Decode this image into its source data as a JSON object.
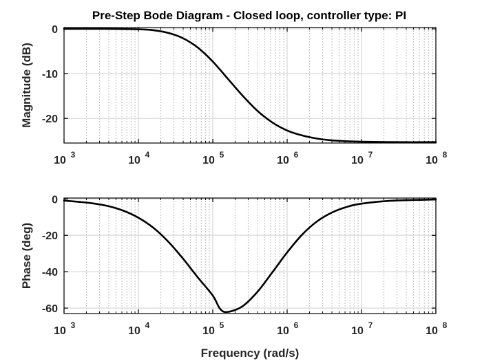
{
  "chart_data": [
    {
      "type": "line",
      "title": "Pre-Step Bode Diagram - Closed loop, controller type: PI",
      "xlabel": "",
      "ylabel": "Magnitude (dB)",
      "xscale": "log",
      "xlim": [
        1000,
        100000000
      ],
      "ylim": [
        -25.5,
        0.3
      ],
      "grid": true,
      "xticks": [
        1000,
        10000,
        100000,
        1000000,
        10000000,
        100000000
      ],
      "yticks": [
        0,
        -10,
        -20
      ],
      "series": [
        {
          "color": "#000000",
          "x": [
            1000,
            3162,
            10000,
            15849,
            25119,
            39811,
            63096,
            100000,
            158489,
            251189,
            398107,
            630957,
            1000000,
            1584893,
            2511886,
            3981072,
            6309573,
            10000000,
            31622777,
            100000000
          ],
          "y": [
            0,
            0,
            -0.1,
            -0.3,
            -0.9,
            -2.1,
            -4.2,
            -7.3,
            -11.1,
            -14.9,
            -18.3,
            -20.9,
            -22.7,
            -23.8,
            -24.5,
            -24.9,
            -25.1,
            -25.2,
            -25.3,
            -25.3
          ]
        }
      ]
    },
    {
      "type": "line",
      "xlabel": "Frequency (rad/s)",
      "ylabel": "Phase (deg)",
      "xscale": "log",
      "xlim": [
        1000,
        100000000
      ],
      "ylim": [
        -63,
        0.5
      ],
      "grid": true,
      "xticks": [
        1000,
        10000,
        100000,
        1000000,
        10000000,
        100000000
      ],
      "yticks": [
        0,
        -20,
        -40,
        -60
      ],
      "series": [
        {
          "color": "#000000",
          "x": [
            1000,
            1585,
            2512,
            3981,
            6310,
            10000,
            15849,
            25119,
            39811,
            63096,
            100000,
            125893,
            158489,
            251189,
            398107,
            630957,
            1000000,
            1584893,
            2511886,
            3981072,
            6309573,
            10000000,
            25118864,
            100000000
          ],
          "y": [
            -0.9,
            -1.6,
            -2.5,
            -4.0,
            -6.5,
            -10.3,
            -15.8,
            -23.4,
            -32.8,
            -43.2,
            -53.1,
            -60.5,
            -62.1,
            -59.0,
            -51.1,
            -40.4,
            -29.4,
            -19.7,
            -12.4,
            -7.5,
            -4.4,
            -2.6,
            -1.0,
            -0.3
          ]
        }
      ]
    }
  ],
  "tick_labels": {
    "x_base": "10",
    "x_exponents": [
      "3",
      "4",
      "5",
      "6",
      "7",
      "8"
    ],
    "mag_y": [
      "0",
      "-10",
      "-20"
    ],
    "phase_y": [
      "0",
      "-20",
      "-40",
      "-60"
    ]
  }
}
